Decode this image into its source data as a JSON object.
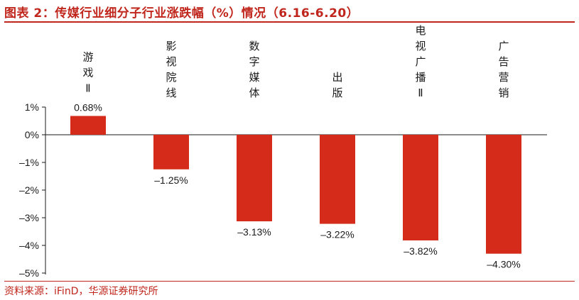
{
  "header": {
    "title": "图表 2：传媒行业细分子行业涨跌幅（%）情况（6.16-6.20）"
  },
  "footer": {
    "source": "资料来源：iFinD，华源证券研究所"
  },
  "colors": {
    "accent": "#c0261c",
    "bar": "#d42b1a",
    "axis": "#1a1a1a"
  },
  "chart_data": {
    "type": "bar",
    "categories": [
      "游戏Ⅱ",
      "影视院线",
      "数字媒体",
      "出版",
      "电视广播Ⅱ",
      "广告营销"
    ],
    "values": [
      0.68,
      -1.25,
      -3.13,
      -3.22,
      -3.82,
      -4.3
    ],
    "value_labels": [
      "0.68%",
      "–1.25%",
      "–3.13%",
      "–3.22%",
      "–3.82%",
      "–4.30%"
    ],
    "yticks": [
      1,
      0,
      -1,
      -2,
      -3,
      -4,
      -5
    ],
    "ytick_labels": [
      "1%",
      "0%",
      "–1%",
      "–2%",
      "–3%",
      "–4%",
      "–5%"
    ],
    "ylim": [
      -5,
      1
    ],
    "grid": false,
    "legend": "none"
  }
}
